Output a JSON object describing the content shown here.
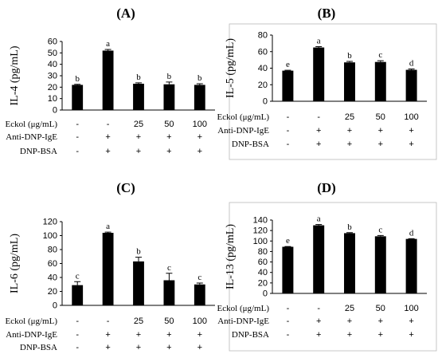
{
  "chart_data": [
    {
      "type": "bar",
      "panel": "(A)",
      "ylabel": "IL-4 (pg/mL)",
      "ylim": [
        0,
        60
      ],
      "yticks": [
        0,
        10,
        20,
        30,
        40,
        50,
        60
      ],
      "values": [
        22,
        52,
        23,
        22.5,
        22
      ],
      "errors": [
        0.5,
        1,
        0.8,
        2,
        1
      ],
      "letters": [
        "b",
        "a",
        "b",
        "b",
        "b"
      ],
      "conditions": {
        "labels": [
          "Eckol (μg/mL)",
          "Anti-DNP-IgE",
          "DNP-BSA"
        ],
        "rows": [
          [
            "-",
            "-",
            "25",
            "50",
            "100"
          ],
          [
            "-",
            "+",
            "+",
            "+",
            "+"
          ],
          [
            "-",
            "+",
            "+",
            "+",
            "+"
          ]
        ]
      }
    },
    {
      "type": "bar",
      "panel": "(B)",
      "ylabel": "IL-5 (pg/mL)",
      "ylim": [
        0,
        80
      ],
      "yticks": [
        0,
        20,
        40,
        60,
        80
      ],
      "values": [
        37,
        65,
        47,
        47.5,
        38
      ],
      "errors": [
        0.5,
        1,
        1.2,
        1.5,
        1
      ],
      "letters": [
        "e",
        "a",
        "b",
        "c",
        "d"
      ],
      "conditions": {
        "labels": [
          "Eckol (μg/mL)",
          "Anti-DNP-IgE",
          "DNP-BSA"
        ],
        "rows": [
          [
            "-",
            "-",
            "25",
            "50",
            "100"
          ],
          [
            "-",
            "+",
            "+",
            "+",
            "+"
          ],
          [
            "-",
            "+",
            "+",
            "+",
            "+"
          ]
        ]
      }
    },
    {
      "type": "bar",
      "panel": "(C)",
      "ylabel": "IL-6 (pg/mL)",
      "ylim": [
        0,
        120
      ],
      "yticks": [
        0,
        20,
        40,
        60,
        80,
        100,
        120
      ],
      "values": [
        29,
        104,
        63,
        36,
        30
      ],
      "errors": [
        5,
        1,
        6,
        10,
        2
      ],
      "letters": [
        "c",
        "a",
        "b",
        "c",
        "c"
      ],
      "conditions": {
        "labels": [
          "Eckol (μg/mL)",
          "Anti-DNP-IgE",
          "DNP-BSA"
        ],
        "rows": [
          [
            "-",
            "-",
            "25",
            "50",
            "100"
          ],
          [
            "-",
            "+",
            "+",
            "+",
            "+"
          ],
          [
            "-",
            "+",
            "+",
            "+",
            "+"
          ]
        ]
      }
    },
    {
      "type": "bar",
      "panel": "(D)",
      "ylabel": "IL-13 (pg/mL)",
      "ylim": [
        0,
        140
      ],
      "yticks": [
        0,
        20,
        40,
        60,
        80,
        100,
        120,
        140
      ],
      "values": [
        89,
        130,
        115,
        109,
        104
      ],
      "errors": [
        0.5,
        1.5,
        1,
        1.5,
        0.5
      ],
      "letters": [
        "e",
        "a",
        "b",
        "c",
        "d"
      ],
      "conditions": {
        "labels": [
          "Eckol (μg/mL)",
          "Anti-DNP-IgE",
          "DNP-BSA"
        ],
        "rows": [
          [
            "-",
            "-",
            "25",
            "50",
            "100"
          ],
          [
            "-",
            "+",
            "+",
            "+",
            "+"
          ],
          [
            "-",
            "+",
            "+",
            "+",
            "+"
          ]
        ]
      }
    }
  ]
}
